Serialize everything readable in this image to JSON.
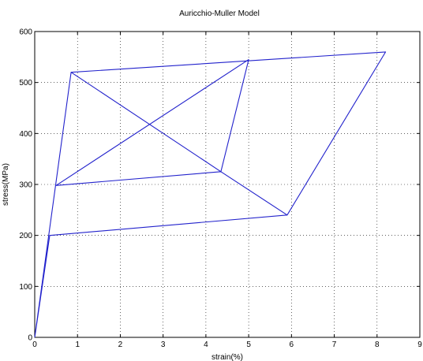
{
  "chart_data": {
    "type": "line",
    "title": "Auricchio-Muller Model",
    "xlabel": "strain(%)",
    "ylabel": "stress(MPa)",
    "xlim": [
      0,
      9
    ],
    "ylim": [
      0,
      600
    ],
    "xticks": [
      0,
      1,
      2,
      3,
      4,
      5,
      6,
      7,
      8,
      9
    ],
    "yticks": [
      0,
      100,
      200,
      300,
      400,
      500,
      600
    ],
    "xtick_labels": [
      "0",
      "1",
      "2",
      "3",
      "4",
      "5",
      "6",
      "7",
      "8",
      "9"
    ],
    "ytick_labels": [
      "0",
      "100",
      "200",
      "300",
      "400",
      "500",
      "600"
    ],
    "grid": true,
    "series": [
      {
        "color": "#2222cc",
        "x": [
          0,
          0.85,
          8.2,
          5.9,
          0.35,
          0
        ],
        "y": [
          0,
          520,
          560,
          240,
          200,
          0
        ]
      },
      {
        "color": "#2222cc",
        "x": [
          0.85,
          4.35,
          5.0,
          0.5
        ],
        "y": [
          520,
          325,
          545,
          298
        ]
      },
      {
        "color": "#2222cc",
        "x": [
          0.5,
          4.35,
          5.9
        ],
        "y": [
          298,
          325,
          240
        ]
      }
    ]
  }
}
